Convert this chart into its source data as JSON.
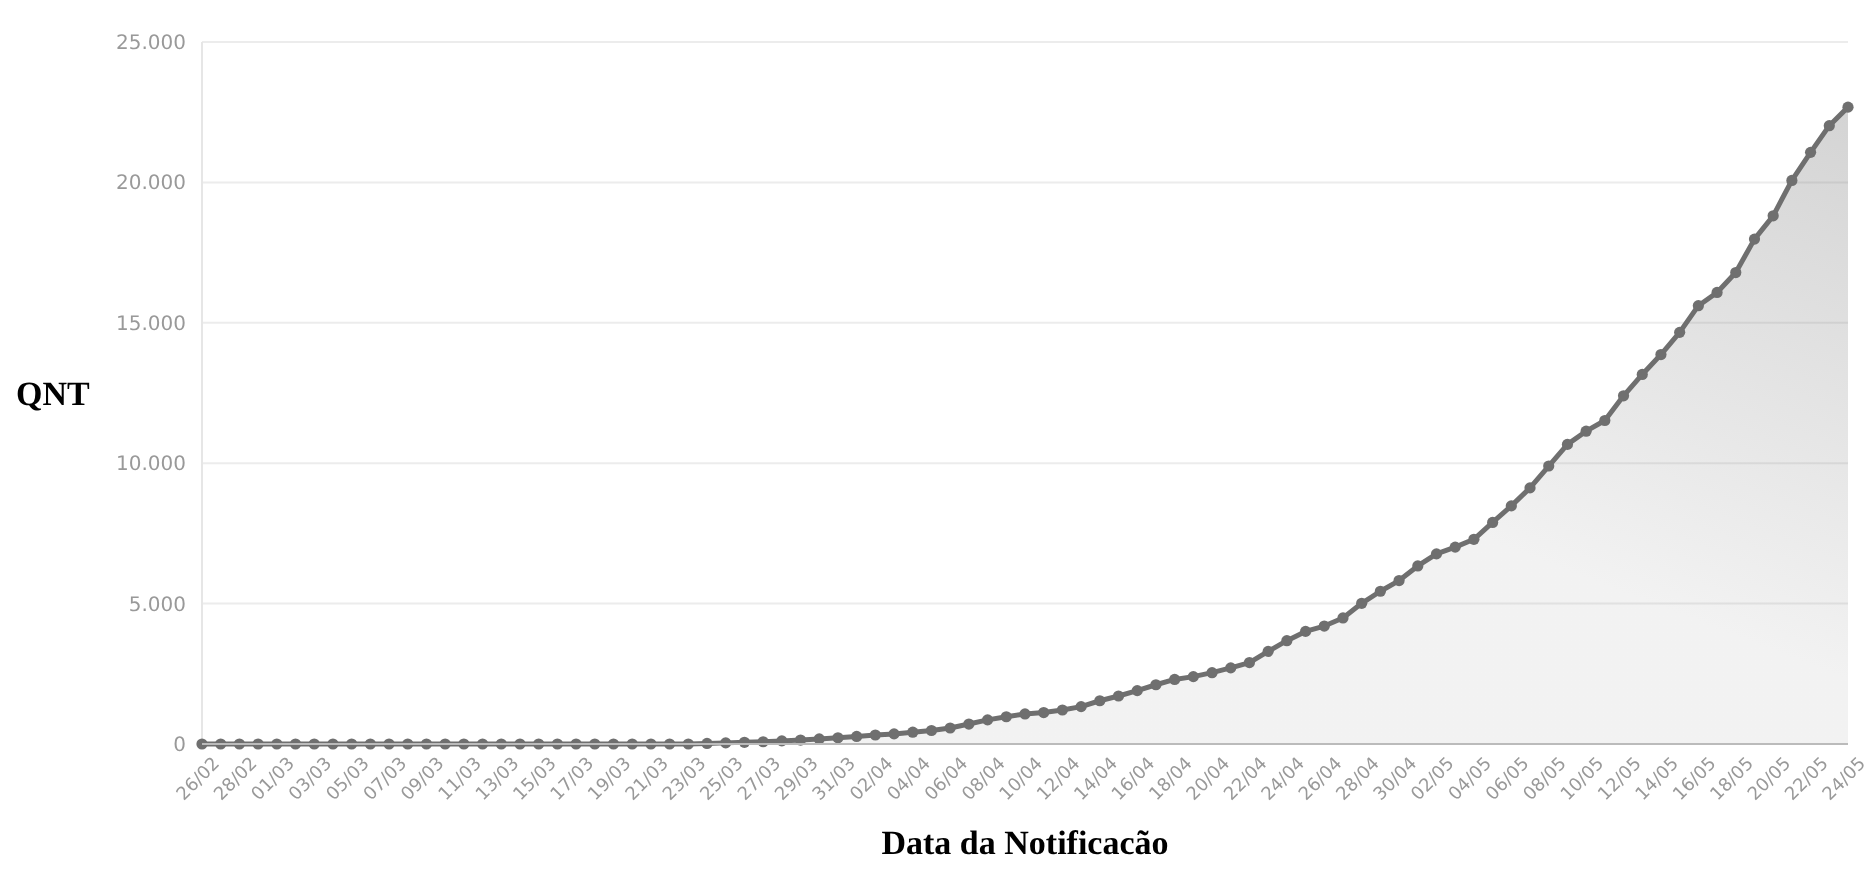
{
  "chart_data": {
    "type": "area",
    "xlabel": "Data da Notificacão",
    "ylabel": "QNT",
    "categories": [
      "26/02",
      null,
      "28/02",
      null,
      "01/03",
      null,
      "03/03",
      null,
      "05/03",
      null,
      "07/03",
      null,
      "09/03",
      null,
      "11/03",
      null,
      "13/03",
      null,
      "15/03",
      null,
      "17/03",
      null,
      "19/03",
      null,
      "21/03",
      null,
      "23/03",
      null,
      "25/03",
      null,
      "27/03",
      null,
      "29/03",
      null,
      "31/03",
      null,
      "02/04",
      null,
      "04/04",
      null,
      "06/04",
      null,
      "08/04",
      null,
      "10/04",
      null,
      "12/04",
      null,
      "14/04",
      null,
      "16/04",
      null,
      "18/04",
      null,
      "20/04",
      null,
      "22/04",
      null,
      "24/04",
      null,
      "26/04",
      null,
      "28/04",
      null,
      "30/04",
      null,
      "02/05",
      null,
      "04/05",
      null,
      "06/05",
      null,
      "08/05",
      null,
      "10/05",
      null,
      "12/05",
      null,
      "14/05",
      null,
      "16/05",
      null,
      "18/05",
      null,
      "20/05",
      null,
      "22/05",
      null,
      "24/05"
    ],
    "series": [
      {
        "color": "#6f6f6f",
        "values": [
          0,
          0,
          0,
          0,
          0,
          0,
          0,
          0,
          0,
          0,
          0,
          0,
          0,
          0,
          0,
          0,
          0,
          0,
          0,
          0,
          0,
          0,
          0,
          0,
          0,
          0,
          0,
          20,
          40,
          60,
          80,
          110,
          140,
          180,
          220,
          270,
          320,
          360,
          420,
          480,
          570,
          710,
          860,
          970,
          1070,
          1120,
          1210,
          1330,
          1540,
          1710,
          1900,
          2110,
          2300,
          2400,
          2540,
          2710,
          2900,
          3300,
          3680,
          4010,
          4200,
          4490,
          5010,
          5440,
          5820,
          6340,
          6770,
          7010,
          7290,
          7890,
          8480,
          9120,
          9900,
          10670,
          11140,
          11520,
          12400,
          13160,
          13870,
          14660,
          15610,
          16080,
          16790,
          17980,
          18810,
          20070,
          21070,
          22020,
          22680
        ]
      }
    ],
    "ylim": [
      0,
      25000
    ],
    "yticks": [
      {
        "value": 0,
        "label": "0"
      },
      {
        "value": 5000,
        "label": "5.000"
      },
      {
        "value": 10000,
        "label": "10.000"
      },
      {
        "value": 15000,
        "label": "15.000"
      },
      {
        "value": 20000,
        "label": "20.000"
      },
      {
        "value": 25000,
        "label": "25.000"
      }
    ],
    "grid": "y",
    "marker": "circle"
  }
}
